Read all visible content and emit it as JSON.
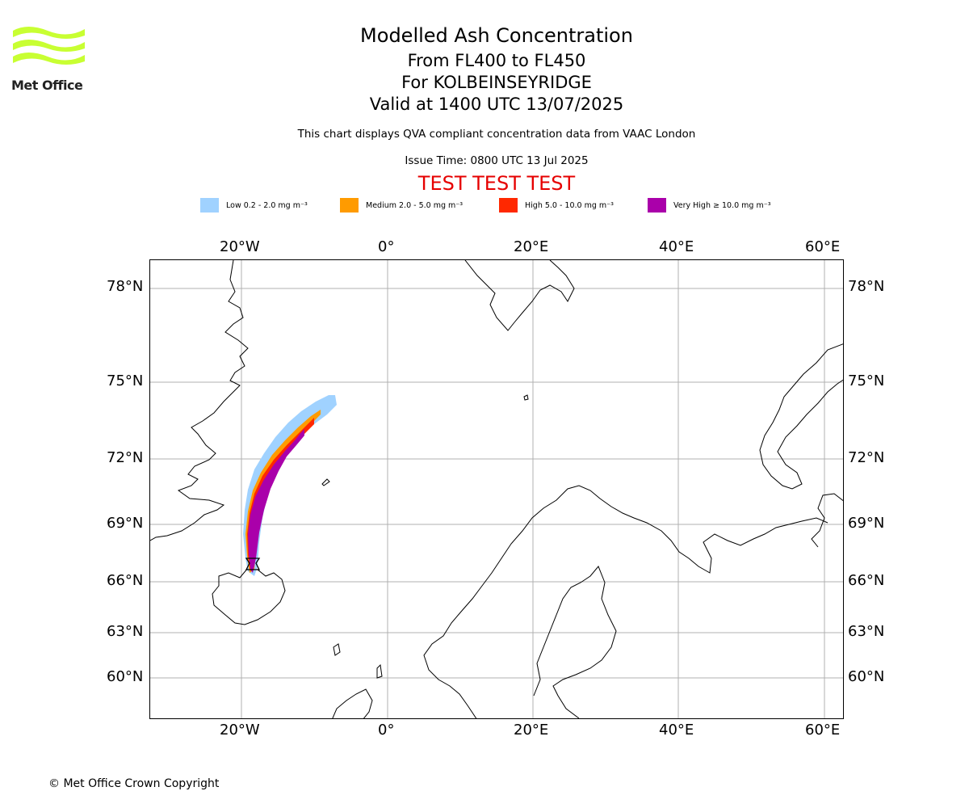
{
  "logo": {
    "text": "Met Office",
    "color": "#c8ff32"
  },
  "header": {
    "title": "Modelled Ash Concentration",
    "levels": "From FL400 to FL450",
    "volcano": "For KOLBEINSEYRIDGE",
    "valid": "Valid at 1400 UTC 13/07/2025",
    "note": "This chart displays QVA compliant concentration data from VAAC London",
    "issue": "Issue Time: 0800 UTC 13 Jul 2025",
    "test_banner": "TEST TEST TEST"
  },
  "legend": [
    {
      "label": "Low 0.2 - 2.0 mg m⁻³",
      "color": "#a0d2ff"
    },
    {
      "label": "Medium 2.0 - 5.0 mg m⁻³",
      "color": "#ff9b00"
    },
    {
      "label": "High 5.0 - 10.0 mg m⁻³",
      "color": "#ff2800"
    },
    {
      "label": "Very High ≥ 10.0 mg m⁻³",
      "color": "#aa00aa"
    }
  ],
  "axes": {
    "lon_ticks": [
      "20°W",
      "0°",
      "20°E",
      "40°E",
      "60°E"
    ],
    "lat_ticks": [
      "78°N",
      "75°N",
      "72°N",
      "69°N",
      "66°N",
      "63°N",
      "60°N"
    ]
  },
  "footer": {
    "copyright": "© Met Office Crown Copyright"
  }
}
